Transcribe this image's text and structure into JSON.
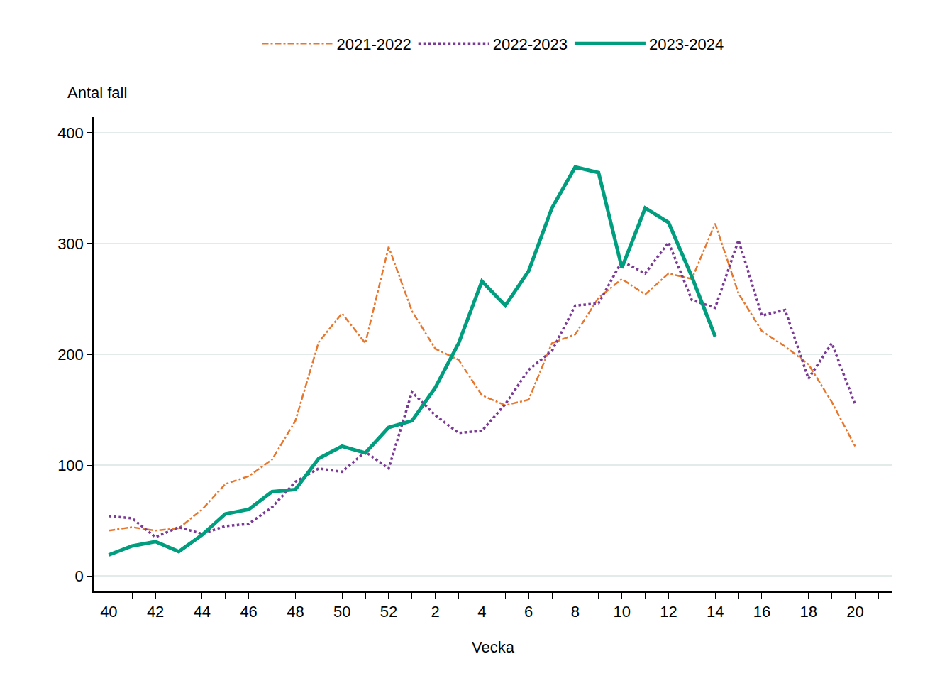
{
  "chart_data": {
    "type": "line",
    "x_label": "Vecka",
    "y_label": "Antal fall",
    "categories": [
      "40",
      null,
      "42",
      null,
      "44",
      null,
      "46",
      null,
      "48",
      null,
      "50",
      null,
      "52",
      null,
      "2",
      null,
      "4",
      null,
      "6",
      null,
      "8",
      null,
      "10",
      null,
      "12",
      null,
      "14",
      null,
      "16",
      null,
      "18",
      null,
      "20"
    ],
    "series": [
      {
        "name": "2021-2022",
        "color": "#e8772e",
        "line_style": "dashdot",
        "values": [
          41,
          44,
          41,
          43,
          60,
          83,
          90,
          105,
          140,
          211,
          237,
          210,
          297,
          239,
          205,
          195,
          163,
          154,
          159,
          210,
          218,
          251,
          268,
          254,
          273,
          268,
          318,
          255,
          221,
          207,
          191,
          157,
          117
        ]
      },
      {
        "name": "2022-2023",
        "color": "#7b3a96",
        "line_style": "dot",
        "values": [
          54,
          52,
          35,
          44,
          38,
          45,
          47,
          62,
          85,
          97,
          94,
          112,
          97,
          166,
          145,
          129,
          131,
          155,
          186,
          203,
          244,
          246,
          284,
          273,
          301,
          249,
          242,
          303,
          235,
          240,
          178,
          210,
          155
        ]
      },
      {
        "name": "2023-2024",
        "color": "#009e7e",
        "line_style": "solid",
        "values": [
          19,
          27,
          31,
          22,
          37,
          56,
          60,
          76,
          78,
          106,
          117,
          111,
          134,
          140,
          170,
          210,
          266,
          244,
          275,
          332,
          369,
          364,
          278,
          332,
          319,
          270,
          216,
          null,
          null,
          null,
          null,
          null,
          null
        ]
      }
    ],
    "ylim": [
      -14,
      414
    ],
    "yticks": [
      0,
      100,
      200,
      300,
      400
    ],
    "grid": true,
    "legend": "top"
  }
}
